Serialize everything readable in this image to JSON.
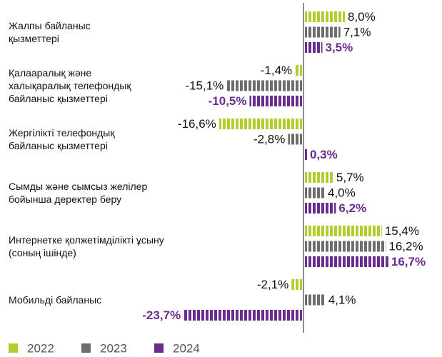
{
  "chart_data": {
    "type": "bar",
    "orientation": "horizontal",
    "categories": [
      "Жалпы байланыс\nқызметтері",
      "Қалааралық және\nхалықаралық телефондық\nбайланыс қызметтері",
      "Жергілікті телефондық\nбайланыс қызметтері",
      "Сымды және сымсыз желілер\nбойынша деректер беру",
      "Интернетке қолжетімділікті ұсыну\n(соның ішінде)",
      "Мобильді байланыс"
    ],
    "series": [
      {
        "name": "2022",
        "color": "#b5cc2e",
        "values": [
          8.0,
          -1.4,
          -16.6,
          5.7,
          15.4,
          -2.1
        ],
        "value_labels": [
          "8,0%",
          "-1,4%",
          "-16,6%",
          "5,7%",
          "15,4%",
          "-2,1%"
        ]
      },
      {
        "name": "2023",
        "color": "#6d6d6d",
        "values": [
          7.1,
          -15.1,
          -2.8,
          4.0,
          16.2,
          4.1
        ],
        "value_labels": [
          "7,1%",
          "-15,1%",
          "-2,8%",
          "4,0%",
          "16,2%",
          "4,1%"
        ]
      },
      {
        "name": "2024",
        "color": "#6a2c8f",
        "values": [
          3.5,
          -10.5,
          0.3,
          6.2,
          16.7,
          -23.7
        ],
        "value_labels": [
          "3,5%",
          "-10,5%",
          "0,3%",
          "6,2%",
          "16,7%",
          "-23,7%"
        ]
      }
    ]
  }
}
